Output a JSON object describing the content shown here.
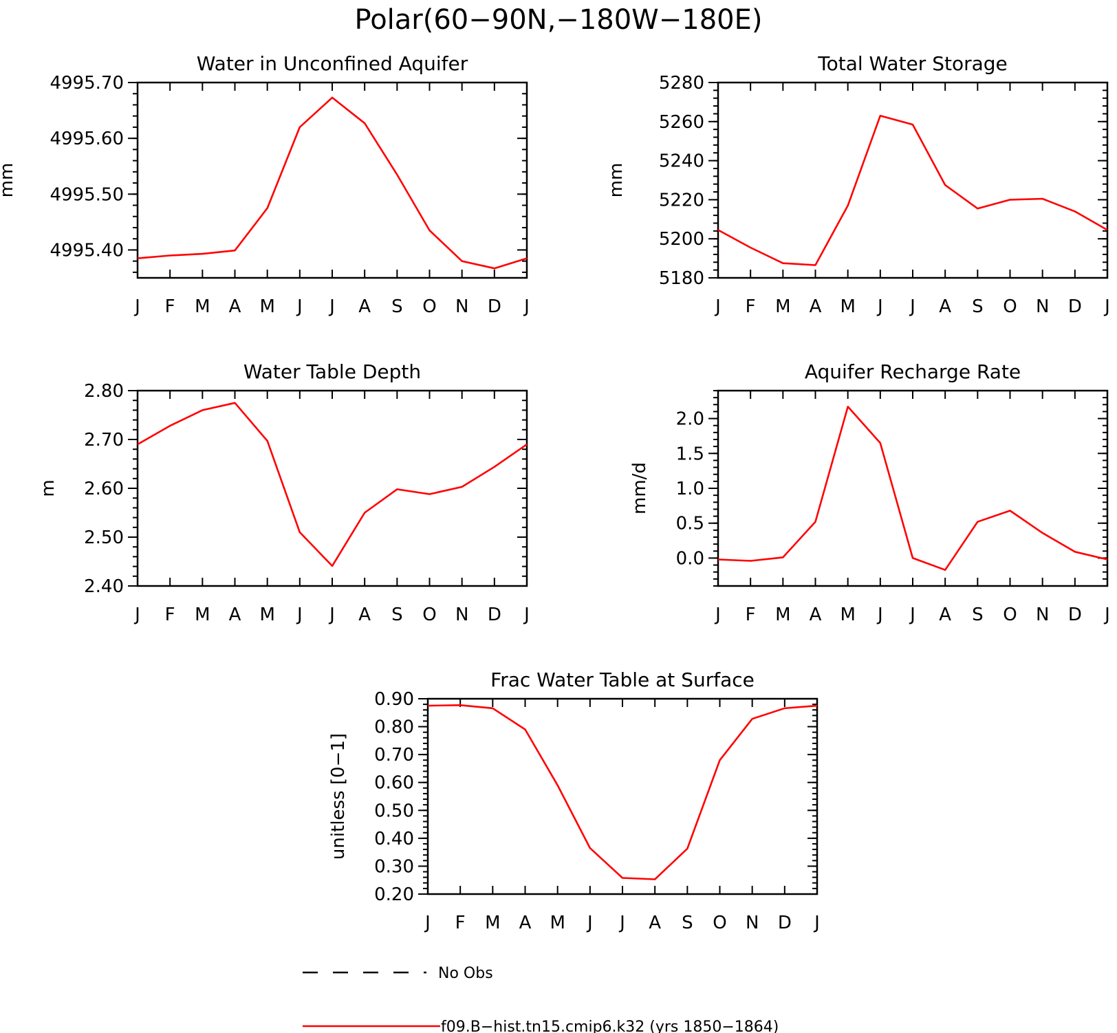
{
  "figure": {
    "title": "Polar(60−90N,−180W−180E)"
  },
  "legend": {
    "items": [
      {
        "label": "No Obs",
        "style": "dashed",
        "color": "#000000"
      },
      {
        "label": "f09.B−hist.tn15.cmip6.k32 (yrs 1850−1864)",
        "style": "solid",
        "color": "#ff0000"
      }
    ]
  },
  "chart_data": [
    {
      "type": "line",
      "title": "Water in Unconfined Aquifer",
      "ylabel": "mm",
      "categories": [
        "J",
        "F",
        "M",
        "A",
        "M",
        "J",
        "J",
        "A",
        "S",
        "O",
        "N",
        "D",
        "J"
      ],
      "ylim": [
        4995.35,
        4995.7
      ],
      "yticks": [
        4995.4,
        4995.5,
        4995.6,
        4995.7
      ],
      "ytick_labels": [
        "4995.40",
        "4995.50",
        "4995.60",
        "4995.70"
      ],
      "series": [
        {
          "color": "#ff0000",
          "values": [
            4995.385,
            4995.39,
            4995.393,
            4995.399,
            4995.475,
            4995.62,
            4995.673,
            4995.627,
            4995.535,
            4995.435,
            4995.38,
            4995.367,
            4995.385
          ]
        }
      ]
    },
    {
      "type": "line",
      "title": "Total Water Storage",
      "ylabel": "mm",
      "categories": [
        "J",
        "F",
        "M",
        "A",
        "M",
        "J",
        "J",
        "A",
        "S",
        "O",
        "N",
        "D",
        "J"
      ],
      "ylim": [
        5180,
        5280
      ],
      "yticks": [
        5180,
        5200,
        5220,
        5240,
        5260,
        5280
      ],
      "ytick_labels": [
        "5180",
        "5200",
        "5220",
        "5240",
        "5260",
        "5280"
      ],
      "series": [
        {
          "color": "#ff0000",
          "values": [
            5204.5,
            5195.5,
            5187.5,
            5186.5,
            5217,
            5263,
            5258.5,
            5227.5,
            5215.5,
            5220,
            5220.5,
            5214,
            5204.5
          ]
        }
      ]
    },
    {
      "type": "line",
      "title": "Water Table Depth",
      "ylabel": "m",
      "categories": [
        "J",
        "F",
        "M",
        "A",
        "M",
        "J",
        "J",
        "A",
        "S",
        "O",
        "N",
        "D",
        "J"
      ],
      "ylim": [
        2.4,
        2.8
      ],
      "yticks": [
        2.4,
        2.5,
        2.6,
        2.7,
        2.8
      ],
      "ytick_labels": [
        "2.40",
        "2.50",
        "2.60",
        "2.70",
        "2.80"
      ],
      "series": [
        {
          "color": "#ff0000",
          "values": [
            2.69,
            2.728,
            2.76,
            2.775,
            2.697,
            2.51,
            2.441,
            2.55,
            2.598,
            2.588,
            2.603,
            2.644,
            2.69
          ]
        }
      ]
    },
    {
      "type": "line",
      "title": "Aquifer Recharge Rate",
      "ylabel": "mm/d",
      "categories": [
        "J",
        "F",
        "M",
        "A",
        "M",
        "J",
        "J",
        "A",
        "S",
        "O",
        "N",
        "D",
        "J"
      ],
      "ylim": [
        -0.4,
        2.4
      ],
      "yticks": [
        0.0,
        0.5,
        1.0,
        1.5,
        2.0
      ],
      "ytick_labels": [
        "0.0",
        "0.5",
        "1.0",
        "1.5",
        "2.0"
      ],
      "series": [
        {
          "color": "#ff0000",
          "values": [
            -0.02,
            -0.04,
            0.01,
            0.52,
            2.17,
            1.65,
            0.0,
            -0.17,
            0.52,
            0.68,
            0.36,
            0.09,
            -0.02
          ]
        }
      ]
    },
    {
      "type": "line",
      "title": "Frac Water Table at Surface",
      "ylabel": "unitless [0−1]",
      "categories": [
        "J",
        "F",
        "M",
        "A",
        "M",
        "J",
        "J",
        "A",
        "S",
        "O",
        "N",
        "D",
        "J"
      ],
      "ylim": [
        0.2,
        0.9
      ],
      "yticks": [
        0.2,
        0.3,
        0.4,
        0.5,
        0.6,
        0.7,
        0.8,
        0.9
      ],
      "ytick_labels": [
        "0.20",
        "0.30",
        "0.40",
        "0.50",
        "0.60",
        "0.70",
        "0.80",
        "0.90"
      ],
      "series": [
        {
          "color": "#ff0000",
          "values": [
            0.875,
            0.877,
            0.866,
            0.79,
            0.59,
            0.365,
            0.258,
            0.253,
            0.363,
            0.68,
            0.828,
            0.866,
            0.875
          ]
        }
      ]
    }
  ]
}
